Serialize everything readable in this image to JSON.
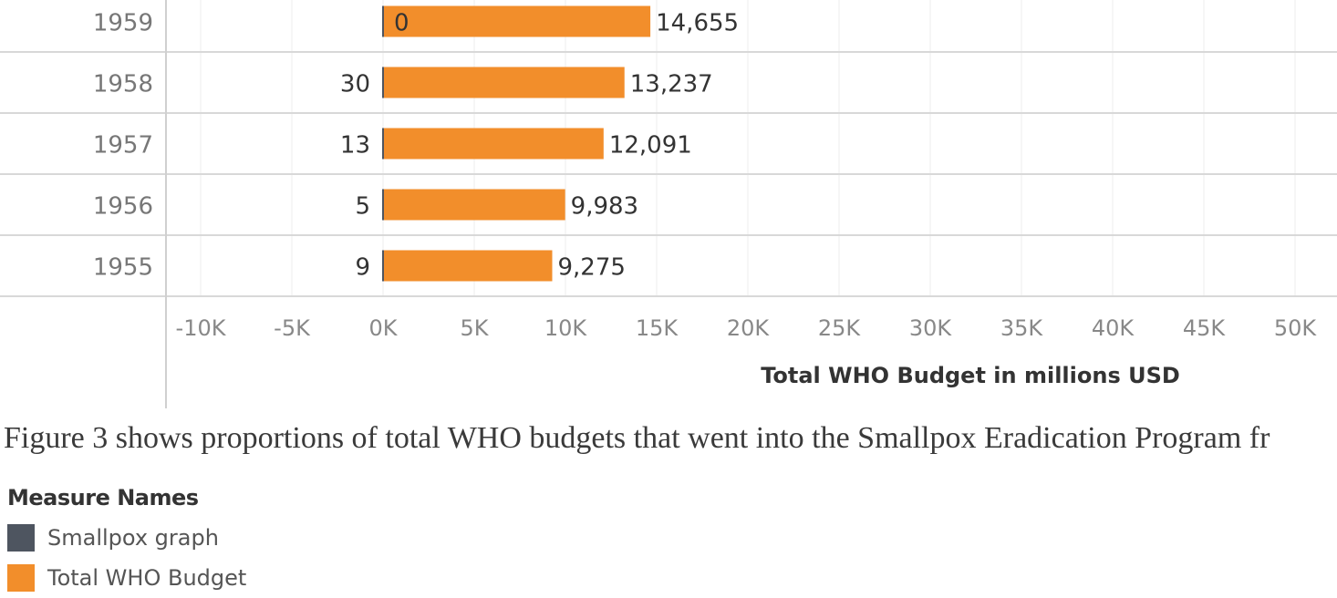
{
  "chart_data": {
    "type": "bar",
    "orientation": "horizontal",
    "categories": [
      "1959",
      "1958",
      "1957",
      "1956",
      "1955"
    ],
    "series": [
      {
        "name": "Smallpox graph",
        "color": "#4e5560",
        "values": [
          0,
          30,
          13,
          5,
          9
        ]
      },
      {
        "name": "Total WHO Budget",
        "color": "#f28e2b",
        "values": [
          14655,
          13237,
          12091,
          9983,
          9275
        ]
      }
    ],
    "value_labels_left": [
      "0",
      "30",
      "13",
      "5",
      "9"
    ],
    "value_labels_right": [
      "14,655",
      "13,237",
      "12,091",
      "9,983",
      "9,275"
    ],
    "x_ticks": [
      -10000,
      -5000,
      0,
      5000,
      10000,
      15000,
      20000,
      25000,
      30000,
      35000,
      40000,
      45000,
      50000
    ],
    "x_tick_labels": [
      "-10K",
      "-5K",
      "0K",
      "5K",
      "10K",
      "15K",
      "20K",
      "25K",
      "30K",
      "35K",
      "40K",
      "45K",
      "50K"
    ],
    "xlim": [
      -10000,
      50000
    ],
    "xlabel": "Total WHO Budget in millions USD",
    "grid": true
  },
  "caption": "Figure 3 shows proportions of total WHO budgets that went into the Smallpox Eradication Program fr",
  "legend": {
    "title": "Measure Names",
    "items": [
      {
        "label": "Smallpox graph",
        "color": "#4e5560"
      },
      {
        "label": "Total WHO Budget",
        "color": "#f28e2b"
      }
    ]
  }
}
